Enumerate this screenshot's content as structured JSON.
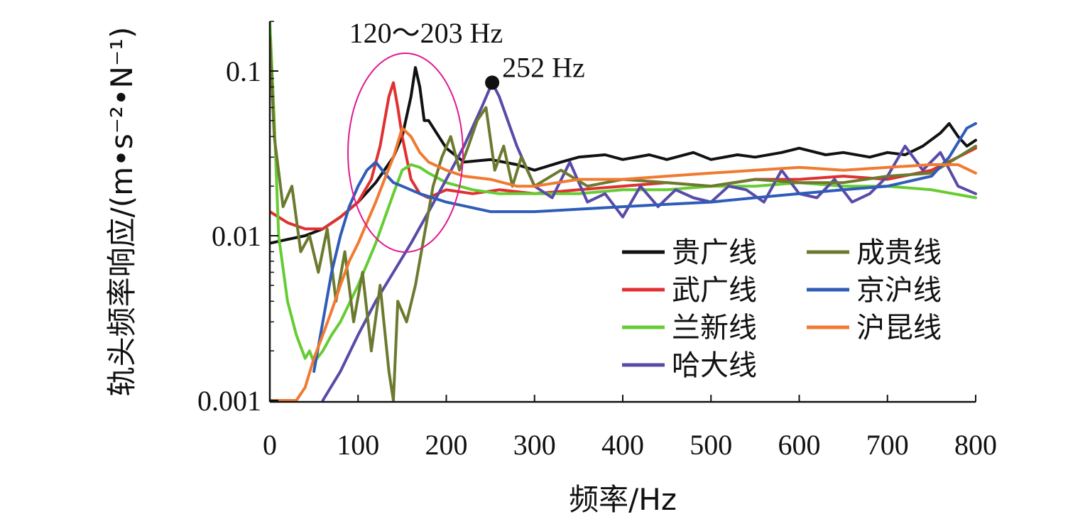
{
  "chart_data": {
    "type": "line",
    "xlabel": "频率/Hz",
    "ylabel": "轨头频率响应/(m•s⁻²•N⁻¹)",
    "xscale": "linear",
    "yscale": "log",
    "xlim": [
      0,
      800
    ],
    "ylim": [
      0.001,
      0.2
    ],
    "x_ticks": [
      "0",
      "100",
      "200",
      "300",
      "400",
      "500",
      "600",
      "700",
      "800"
    ],
    "y_ticks": [
      "0.1",
      "0.01",
      "0.001"
    ],
    "grid": false,
    "legend_position": "bottom-right",
    "annotations": [
      {
        "text": "120～203 Hz",
        "type": "ellipse",
        "x_range": [
          90,
          220
        ]
      },
      {
        "text": "252 Hz",
        "type": "point",
        "x": 252,
        "y": 0.085
      }
    ],
    "series": [
      {
        "name": "贵广线",
        "color": "#111111",
        "x": [
          0,
          20,
          40,
          60,
          80,
          100,
          120,
          140,
          150,
          160,
          165,
          170,
          175,
          180,
          200,
          220,
          250,
          280,
          300,
          330,
          350,
          380,
          400,
          430,
          450,
          480,
          500,
          530,
          550,
          580,
          600,
          630,
          650,
          680,
          700,
          720,
          740,
          760,
          770,
          780,
          790,
          800
        ],
        "y": [
          0.009,
          0.0095,
          0.01,
          0.011,
          0.013,
          0.016,
          0.021,
          0.03,
          0.04,
          0.07,
          0.105,
          0.08,
          0.05,
          0.05,
          0.034,
          0.028,
          0.029,
          0.027,
          0.025,
          0.028,
          0.03,
          0.031,
          0.029,
          0.031,
          0.029,
          0.032,
          0.029,
          0.031,
          0.03,
          0.032,
          0.034,
          0.031,
          0.032,
          0.03,
          0.032,
          0.031,
          0.035,
          0.042,
          0.048,
          0.04,
          0.035,
          0.038
        ]
      },
      {
        "name": "武广线",
        "color": "#e03030",
        "x": [
          0,
          20,
          40,
          60,
          80,
          100,
          115,
          125,
          135,
          140,
          145,
          150,
          160,
          170,
          180,
          190,
          200,
          230,
          260,
          300,
          350,
          400,
          450,
          500,
          550,
          600,
          650,
          700,
          750,
          780,
          800
        ],
        "y": [
          0.014,
          0.012,
          0.011,
          0.011,
          0.013,
          0.016,
          0.022,
          0.035,
          0.07,
          0.085,
          0.06,
          0.04,
          0.022,
          0.018,
          0.017,
          0.018,
          0.019,
          0.018,
          0.019,
          0.018,
          0.019,
          0.02,
          0.021,
          0.02,
          0.022,
          0.022,
          0.023,
          0.022,
          0.025,
          0.03,
          0.034
        ]
      },
      {
        "name": "兰新线",
        "color": "#66cc33",
        "x": [
          0,
          5,
          10,
          20,
          30,
          40,
          45,
          50,
          60,
          70,
          80,
          100,
          120,
          140,
          150,
          160,
          170,
          180,
          200,
          230,
          260,
          300,
          350,
          400,
          450,
          500,
          550,
          600,
          650,
          700,
          750,
          800
        ],
        "y": [
          0.2,
          0.05,
          0.01,
          0.004,
          0.0025,
          0.0018,
          0.002,
          0.0017,
          0.002,
          0.0025,
          0.003,
          0.005,
          0.009,
          0.018,
          0.025,
          0.027,
          0.026,
          0.024,
          0.021,
          0.019,
          0.018,
          0.018,
          0.018,
          0.019,
          0.019,
          0.02,
          0.02,
          0.021,
          0.02,
          0.02,
          0.019,
          0.017
        ]
      },
      {
        "name": "哈大线",
        "color": "#5a4aa8",
        "x": [
          60,
          80,
          100,
          120,
          140,
          160,
          180,
          200,
          220,
          240,
          250,
          252,
          260,
          280,
          300,
          320,
          340,
          360,
          380,
          400,
          420,
          440,
          460,
          480,
          500,
          520,
          540,
          560,
          580,
          600,
          620,
          640,
          660,
          680,
          700,
          720,
          740,
          760,
          780,
          800
        ],
        "y": [
          0.001,
          0.0015,
          0.0025,
          0.004,
          0.006,
          0.009,
          0.014,
          0.022,
          0.035,
          0.06,
          0.08,
          0.085,
          0.07,
          0.035,
          0.02,
          0.017,
          0.028,
          0.016,
          0.018,
          0.013,
          0.02,
          0.015,
          0.019,
          0.017,
          0.016,
          0.02,
          0.019,
          0.016,
          0.025,
          0.018,
          0.017,
          0.022,
          0.016,
          0.018,
          0.023,
          0.035,
          0.025,
          0.032,
          0.02,
          0.018
        ]
      },
      {
        "name": "成贵线",
        "color": "#6b7a2e",
        "x": [
          0,
          5,
          15,
          25,
          35,
          45,
          55,
          65,
          75,
          85,
          95,
          105,
          115,
          125,
          135,
          140,
          145,
          155,
          165,
          175,
          185,
          195,
          205,
          215,
          225,
          235,
          245,
          255,
          265,
          275,
          285,
          300,
          330,
          360,
          400,
          450,
          500,
          550,
          600,
          650,
          700,
          750,
          780,
          800
        ],
        "y": [
          0.16,
          0.04,
          0.015,
          0.02,
          0.008,
          0.01,
          0.006,
          0.011,
          0.004,
          0.008,
          0.003,
          0.006,
          0.002,
          0.005,
          0.0015,
          0.001,
          0.004,
          0.003,
          0.005,
          0.01,
          0.02,
          0.03,
          0.04,
          0.025,
          0.035,
          0.05,
          0.06,
          0.025,
          0.035,
          0.02,
          0.03,
          0.02,
          0.025,
          0.02,
          0.022,
          0.021,
          0.02,
          0.022,
          0.021,
          0.021,
          0.023,
          0.024,
          0.03,
          0.035
        ]
      },
      {
        "name": "京沪线",
        "color": "#2e5cb8",
        "x": [
          50,
          60,
          70,
          80,
          90,
          100,
          110,
          120,
          130,
          140,
          150,
          170,
          200,
          250,
          300,
          350,
          400,
          450,
          500,
          550,
          600,
          650,
          700,
          750,
          770,
          790,
          800
        ],
        "y": [
          0.0015,
          0.003,
          0.006,
          0.01,
          0.015,
          0.02,
          0.025,
          0.028,
          0.024,
          0.021,
          0.02,
          0.018,
          0.016,
          0.014,
          0.014,
          0.0145,
          0.015,
          0.0155,
          0.016,
          0.017,
          0.018,
          0.019,
          0.02,
          0.023,
          0.03,
          0.045,
          0.048
        ]
      },
      {
        "name": "沪昆线",
        "color": "#f07a30",
        "x": [
          0,
          30,
          40,
          50,
          60,
          70,
          80,
          90,
          100,
          110,
          120,
          130,
          140,
          150,
          160,
          170,
          180,
          200,
          220,
          250,
          280,
          300,
          350,
          400,
          450,
          500,
          550,
          600,
          650,
          700,
          750,
          780,
          800
        ],
        "y": [
          0.001,
          0.001,
          0.0012,
          0.0018,
          0.0025,
          0.0035,
          0.005,
          0.007,
          0.009,
          0.012,
          0.016,
          0.022,
          0.03,
          0.045,
          0.04,
          0.032,
          0.028,
          0.025,
          0.023,
          0.022,
          0.02,
          0.02,
          0.022,
          0.022,
          0.023,
          0.024,
          0.025,
          0.026,
          0.025,
          0.026,
          0.027,
          0.027,
          0.024
        ]
      }
    ]
  }
}
